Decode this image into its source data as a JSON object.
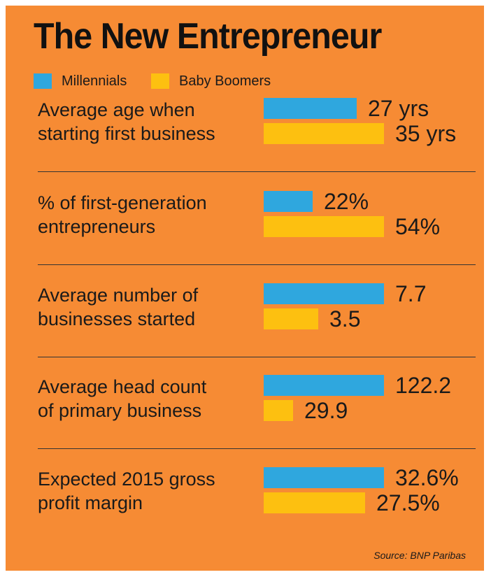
{
  "title": "The New Entrepreneur",
  "legend": [
    {
      "label": "Millennials",
      "color": "#2fa7de"
    },
    {
      "label": "Baby Boomers",
      "color": "#fdc010"
    }
  ],
  "source": "Source: BNP Paribas",
  "chart_data": {
    "type": "bar",
    "orientation": "horizontal",
    "title": "The New Entrepreneur",
    "categories": [
      "Average age when starting first business",
      "% of first-generation entrepreneurs",
      "Average number of businesses started",
      "Average head count of primary business",
      "Expected 2015 gross profit margin"
    ],
    "category_lines": [
      [
        "Average age when",
        "starting first business"
      ],
      [
        "% of first-generation",
        "entrepreneurs"
      ],
      [
        "Average number of",
        "businesses started"
      ],
      [
        "Average head count",
        "of primary business"
      ],
      [
        "Expected 2015 gross",
        "profit margin"
      ]
    ],
    "series": [
      {
        "name": "Millennials",
        "color": "#2fa7de",
        "values": [
          27,
          22,
          7.7,
          122.2,
          32.6
        ],
        "labels": [
          "27 yrs",
          "22%",
          "7.7",
          "122.2",
          "32.6%"
        ]
      },
      {
        "name": "Baby Boomers",
        "color": "#fdc010",
        "values": [
          35,
          54,
          3.5,
          29.9,
          27.5
        ],
        "labels": [
          "35 yrs",
          "54%",
          "3.5",
          "29.9",
          "27.5%"
        ]
      }
    ],
    "grid": false,
    "legend_position": "top-left",
    "note": "Bars are scaled independently within each category (relative comparison)."
  }
}
